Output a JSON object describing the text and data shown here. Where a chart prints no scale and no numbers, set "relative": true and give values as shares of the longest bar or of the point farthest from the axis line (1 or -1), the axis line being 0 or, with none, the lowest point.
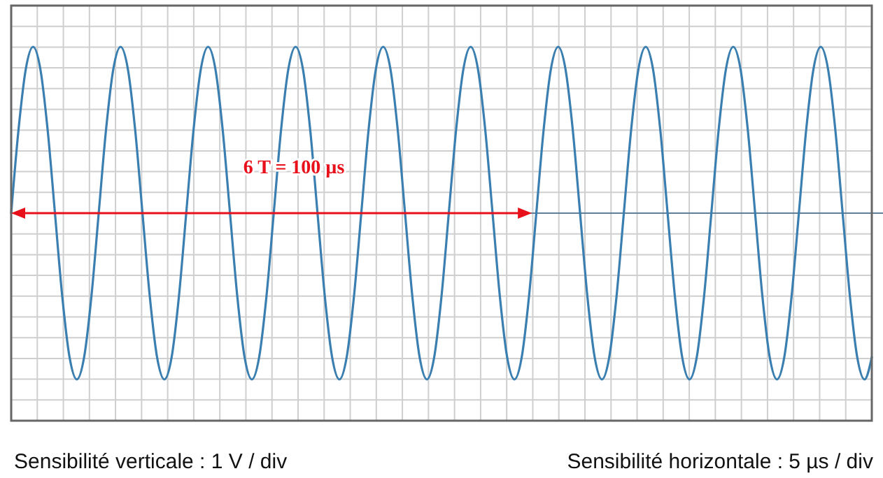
{
  "chart_data": {
    "type": "line",
    "relative": true,
    "grid": true,
    "ref_lines": [
      {
        "axis": "y",
        "value": 0,
        "color": "#5f7f99"
      }
    ],
    "categories": [
      null,
      null,
      null,
      null,
      null,
      null,
      null,
      null,
      null,
      null,
      null,
      null,
      null,
      null,
      null,
      null,
      null,
      null,
      null,
      null,
      null,
      null,
      null,
      null,
      null,
      null,
      null,
      null,
      null,
      null,
      null,
      null,
      null,
      null,
      null,
      null,
      null,
      null,
      null,
      null,
      null,
      null,
      null,
      null,
      null,
      null,
      null,
      null,
      null,
      null,
      null,
      null,
      null,
      null,
      null,
      null,
      null,
      null,
      null,
      null,
      null,
      null,
      null,
      null,
      null,
      null,
      null,
      null,
      null,
      null,
      null,
      null,
      null,
      null,
      null,
      null,
      null,
      null,
      null,
      null,
      null,
      null,
      null,
      null,
      null,
      null,
      null,
      null,
      null,
      null,
      null,
      null,
      null,
      null,
      null,
      null,
      null,
      null,
      null,
      null,
      null,
      null,
      null,
      null,
      null,
      null,
      null,
      null,
      null,
      null,
      null,
      null,
      null,
      null,
      null,
      null,
      null,
      null,
      null
    ],
    "series": [
      {
        "color": "#3b7fb0",
        "values": [
          0,
          0.5,
          0.866,
          1,
          0.866,
          0.5,
          0,
          -0.5,
          -0.866,
          -1,
          -0.866,
          -0.5,
          0,
          0.5,
          0.866,
          1,
          0.866,
          0.5,
          0,
          -0.5,
          -0.866,
          -1,
          -0.866,
          -0.5,
          0,
          0.5,
          0.866,
          1,
          0.866,
          0.5,
          0,
          -0.5,
          -0.866,
          -1,
          -0.866,
          -0.5,
          0,
          0.5,
          0.866,
          1,
          0.866,
          0.5,
          0,
          -0.5,
          -0.866,
          -1,
          -0.866,
          -0.5,
          0,
          0.5,
          0.866,
          1,
          0.866,
          0.5,
          0,
          -0.5,
          -0.866,
          -1,
          -0.866,
          -0.5,
          0,
          0.5,
          0.866,
          1,
          0.866,
          0.5,
          0,
          -0.5,
          -0.866,
          -1,
          -0.866,
          -0.5,
          0,
          0.5,
          0.866,
          1,
          0.866,
          0.5,
          0,
          -0.5,
          -0.866,
          -1,
          -0.866,
          -0.5,
          0,
          0.5,
          0.866,
          1,
          0.866,
          0.5,
          0,
          -0.5,
          -0.866,
          -1,
          -0.866,
          -0.5,
          0,
          0.5,
          0.866,
          1,
          0.866,
          0.5,
          0,
          -0.5,
          -0.866,
          -1,
          -0.866,
          -0.5,
          0,
          0.5,
          0.866,
          1,
          0.866,
          0.5,
          0,
          -0.5,
          -0.866,
          -1,
          -0.866
        ]
      }
    ],
    "annotations": [
      "6 T = 100 µs",
      "Sensibilité verticale : 1 V / div",
      "Sensibilité horizontale : 5 µs / div"
    ]
  }
}
